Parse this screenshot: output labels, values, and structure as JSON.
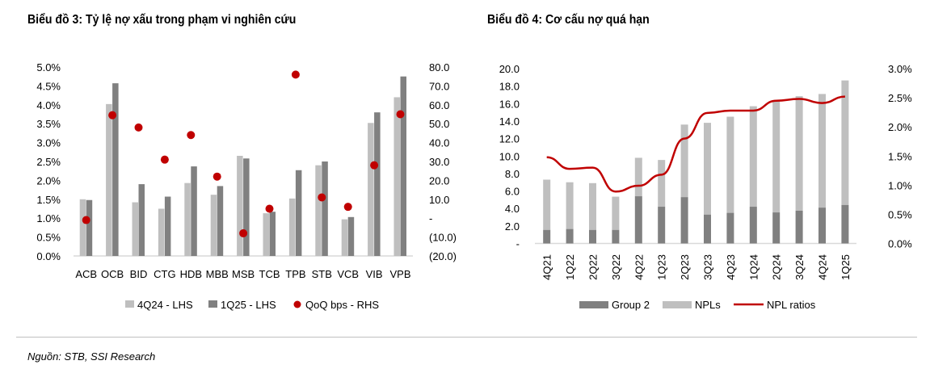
{
  "source": "Nguồn: STB, SSI Research",
  "colors": {
    "light": "#bfbfbf",
    "dark": "#808080",
    "red": "#c00000"
  },
  "chart_data": [
    {
      "type": "bar",
      "title": "Biểu đồ 3: Tỷ lệ nợ xấu trong phạm vi nghiên cứu",
      "categories": [
        "ACB",
        "OCB",
        "BID",
        "CTG",
        "HDB",
        "MBB",
        "MSB",
        "TCB",
        "TPB",
        "STB",
        "VCB",
        "VIB",
        "VPB"
      ],
      "series": [
        {
          "name": "4Q24 - LHS",
          "axis": "left",
          "kind": "bar",
          "values": [
            1.5,
            4.02,
            1.42,
            1.25,
            1.93,
            1.62,
            2.65,
            1.13,
            1.52,
            2.4,
            0.97,
            3.52,
            4.2
          ]
        },
        {
          "name": "1Q25 - LHS",
          "axis": "left",
          "kind": "bar",
          "values": [
            1.48,
            4.57,
            1.9,
            1.57,
            2.37,
            1.85,
            2.58,
            1.17,
            2.27,
            2.5,
            1.03,
            3.8,
            4.75
          ]
        },
        {
          "name": "QoQ bps - RHS",
          "axis": "right",
          "kind": "scatter",
          "values": [
            -1,
            54.5,
            48,
            31,
            44,
            22,
            -8,
            5,
            76,
            11,
            6,
            28,
            55
          ]
        }
      ],
      "ylim_left": [
        0,
        5
      ],
      "ylim_right": [
        -20,
        80
      ],
      "yticks_left": [
        "0.0%",
        "0.5%",
        "1.0%",
        "1.5%",
        "2.0%",
        "2.5%",
        "3.0%",
        "3.5%",
        "4.0%",
        "4.5%",
        "5.0%"
      ],
      "yticks_right": [
        "(20.0)",
        "(10.0)",
        "-",
        "10.0",
        "20.0",
        "30.0",
        "40.0",
        "50.0",
        "60.0",
        "70.0",
        "80.0"
      ],
      "legend": "bottom"
    },
    {
      "type": "bar",
      "title": "Biểu đồ 4: Cơ cấu nợ quá hạn",
      "categories": [
        "4Q21",
        "1Q22",
        "2Q22",
        "3Q22",
        "4Q22",
        "1Q23",
        "2Q23",
        "3Q23",
        "4Q23",
        "1Q24",
        "2Q24",
        "3Q24",
        "4Q24",
        "1Q25"
      ],
      "series": [
        {
          "name": "Group 2",
          "axis": "left",
          "kind": "stacked-bar",
          "values": [
            1.55,
            1.65,
            1.55,
            1.55,
            5.4,
            4.2,
            5.3,
            3.3,
            3.5,
            4.2,
            3.55,
            3.75,
            4.1,
            4.4
          ]
        },
        {
          "name": "NPLs",
          "axis": "left",
          "kind": "stacked-bar",
          "values": [
            5.75,
            5.35,
            5.35,
            3.8,
            4.4,
            5.35,
            8.3,
            10.5,
            11.0,
            11.5,
            12.75,
            13.1,
            13.0,
            14.25
          ]
        },
        {
          "name": "NPL ratios",
          "axis": "right",
          "kind": "line",
          "values": [
            1.48,
            1.28,
            1.3,
            0.89,
            0.99,
            1.18,
            1.8,
            2.24,
            2.28,
            2.28,
            2.45,
            2.48,
            2.41,
            2.52
          ]
        }
      ],
      "ylim_left": [
        0,
        20
      ],
      "ylim_right": [
        0,
        3
      ],
      "yticks_left": [
        "-",
        "2.0",
        "4.0",
        "6.0",
        "8.0",
        "10.0",
        "12.0",
        "14.0",
        "16.0",
        "18.0",
        "20.0"
      ],
      "yticks_right": [
        "0.0%",
        "0.5%",
        "1.0%",
        "1.5%",
        "2.0%",
        "2.5%",
        "3.0%"
      ],
      "legend": "bottom"
    }
  ]
}
